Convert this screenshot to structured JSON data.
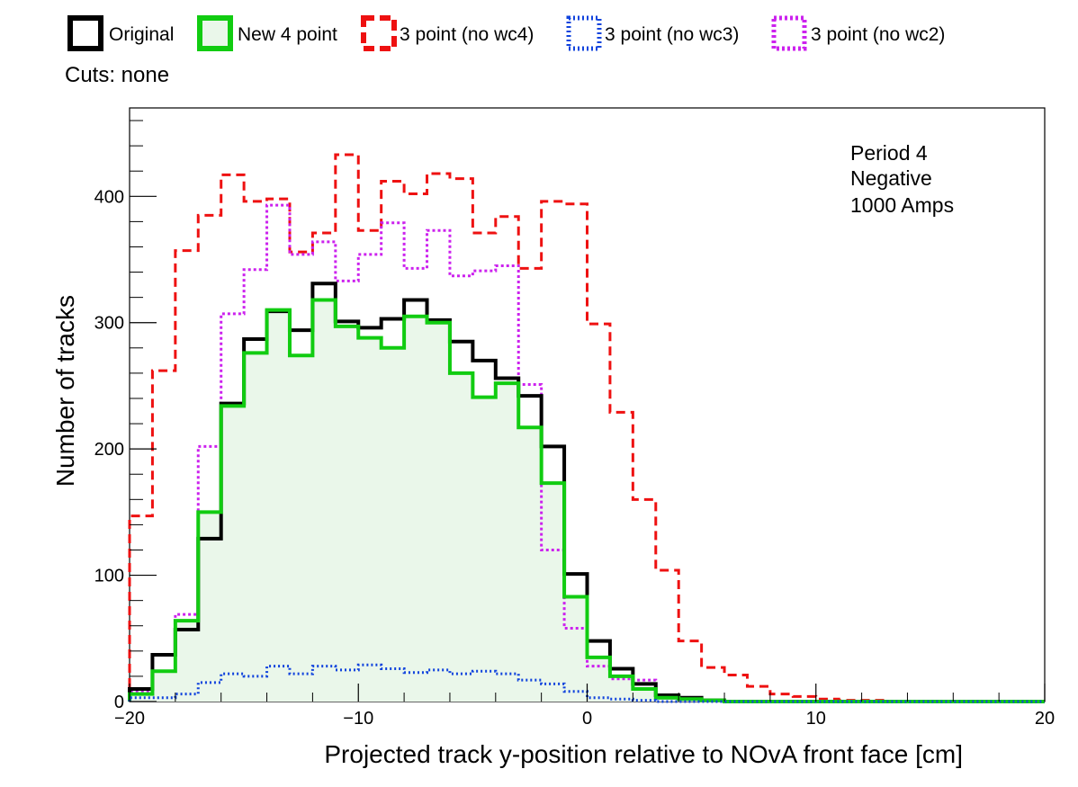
{
  "legend": {
    "cuts_label": "Cuts: none",
    "entries": [
      {
        "label": "Original",
        "color": "#000000",
        "style": "solid",
        "fill": "#ffffff"
      },
      {
        "label": "New 4 point",
        "color": "#11cc11",
        "style": "solid",
        "fill": "#eaf7ea"
      },
      {
        "label": "3 point (no wc4)",
        "color": "#ee1111",
        "style": "dashed",
        "fill": "#ffffff"
      },
      {
        "label": "3 point (no wc3)",
        "color": "#1144dd",
        "style": "dotted",
        "fill": "#ffffff"
      },
      {
        "label": "3 point (no wc2)",
        "color": "#cc22ee",
        "style": "dotted",
        "fill": "#ffffff"
      }
    ]
  },
  "annotation": [
    "Period 4",
    "Negative",
    "1000 Amps"
  ],
  "chart_data": {
    "type": "histogram",
    "title": "",
    "xlabel": "Projected track y-position relative to NOvA front face [cm]",
    "ylabel": "Number of tracks",
    "xlim": [
      -20,
      20
    ],
    "ylim": [
      0,
      470
    ],
    "xticks": [
      -20,
      -10,
      0,
      10,
      20
    ],
    "xtick_labels": [
      "−20",
      "−10",
      "0",
      "10",
      "20"
    ],
    "yticks": [
      0,
      100,
      200,
      300,
      400
    ],
    "ytick_labels": [
      "0",
      "100",
      "200",
      "300",
      "400"
    ],
    "grid": false,
    "legend_position": "top",
    "bin_edges_range": [
      -20,
      20
    ],
    "bin_width": 1,
    "series": [
      {
        "name": "Original",
        "color": "#000000",
        "dash": "",
        "width": 4,
        "filled": false,
        "values": [
          10,
          37,
          57,
          129,
          236,
          287,
          309,
          294,
          331,
          301,
          296,
          303,
          318,
          302,
          285,
          270,
          256,
          242,
          202,
          101,
          48,
          26,
          14,
          5,
          3,
          1,
          0,
          0,
          0,
          0,
          0,
          0,
          0,
          0,
          0,
          0,
          0,
          0,
          0,
          0
        ]
      },
      {
        "name": "New 4 point",
        "color": "#11cc11",
        "dash": "",
        "width": 4,
        "filled": true,
        "fill": "#eaf7ea",
        "values": [
          6,
          24,
          64,
          150,
          234,
          276,
          310,
          274,
          318,
          297,
          288,
          280,
          305,
          300,
          260,
          241,
          252,
          217,
          173,
          83,
          35,
          20,
          10,
          3,
          2,
          1,
          0,
          0,
          0,
          0,
          0,
          0,
          0,
          0,
          0,
          0,
          0,
          0,
          0,
          0
        ]
      },
      {
        "name": "3 point (no wc4)",
        "color": "#ee1111",
        "dash": "10,6",
        "width": 3,
        "filled": false,
        "values": [
          147,
          262,
          357,
          385,
          417,
          396,
          398,
          356,
          371,
          433,
          373,
          412,
          402,
          418,
          414,
          371,
          384,
          343,
          396,
          394,
          299,
          229,
          160,
          104,
          48,
          27,
          21,
          12,
          6,
          4,
          2,
          1,
          1,
          0,
          0,
          0,
          0,
          0,
          0,
          0
        ]
      },
      {
        "name": "3 point (no wc3)",
        "color": "#1144dd",
        "dash": "2,3",
        "width": 3,
        "filled": false,
        "values": [
          3,
          3,
          6,
          15,
          22,
          20,
          28,
          22,
          28,
          25,
          29,
          26,
          23,
          25,
          22,
          24,
          22,
          17,
          14,
          8,
          3,
          2,
          1,
          0,
          0,
          0,
          0,
          0,
          0,
          0,
          0,
          0,
          0,
          0,
          0,
          0,
          0,
          0,
          0,
          0
        ]
      },
      {
        "name": "3 point (no wc2)",
        "color": "#cc22ee",
        "dash": "3,3",
        "width": 3,
        "filled": false,
        "values": [
          8,
          24,
          69,
          202,
          307,
          342,
          393,
          354,
          364,
          333,
          354,
          379,
          343,
          373,
          337,
          341,
          345,
          251,
          120,
          58,
          28,
          18,
          17,
          5,
          2,
          1,
          0,
          0,
          0,
          0,
          0,
          0,
          0,
          0,
          0,
          0,
          0,
          0,
          0,
          0
        ]
      }
    ]
  }
}
